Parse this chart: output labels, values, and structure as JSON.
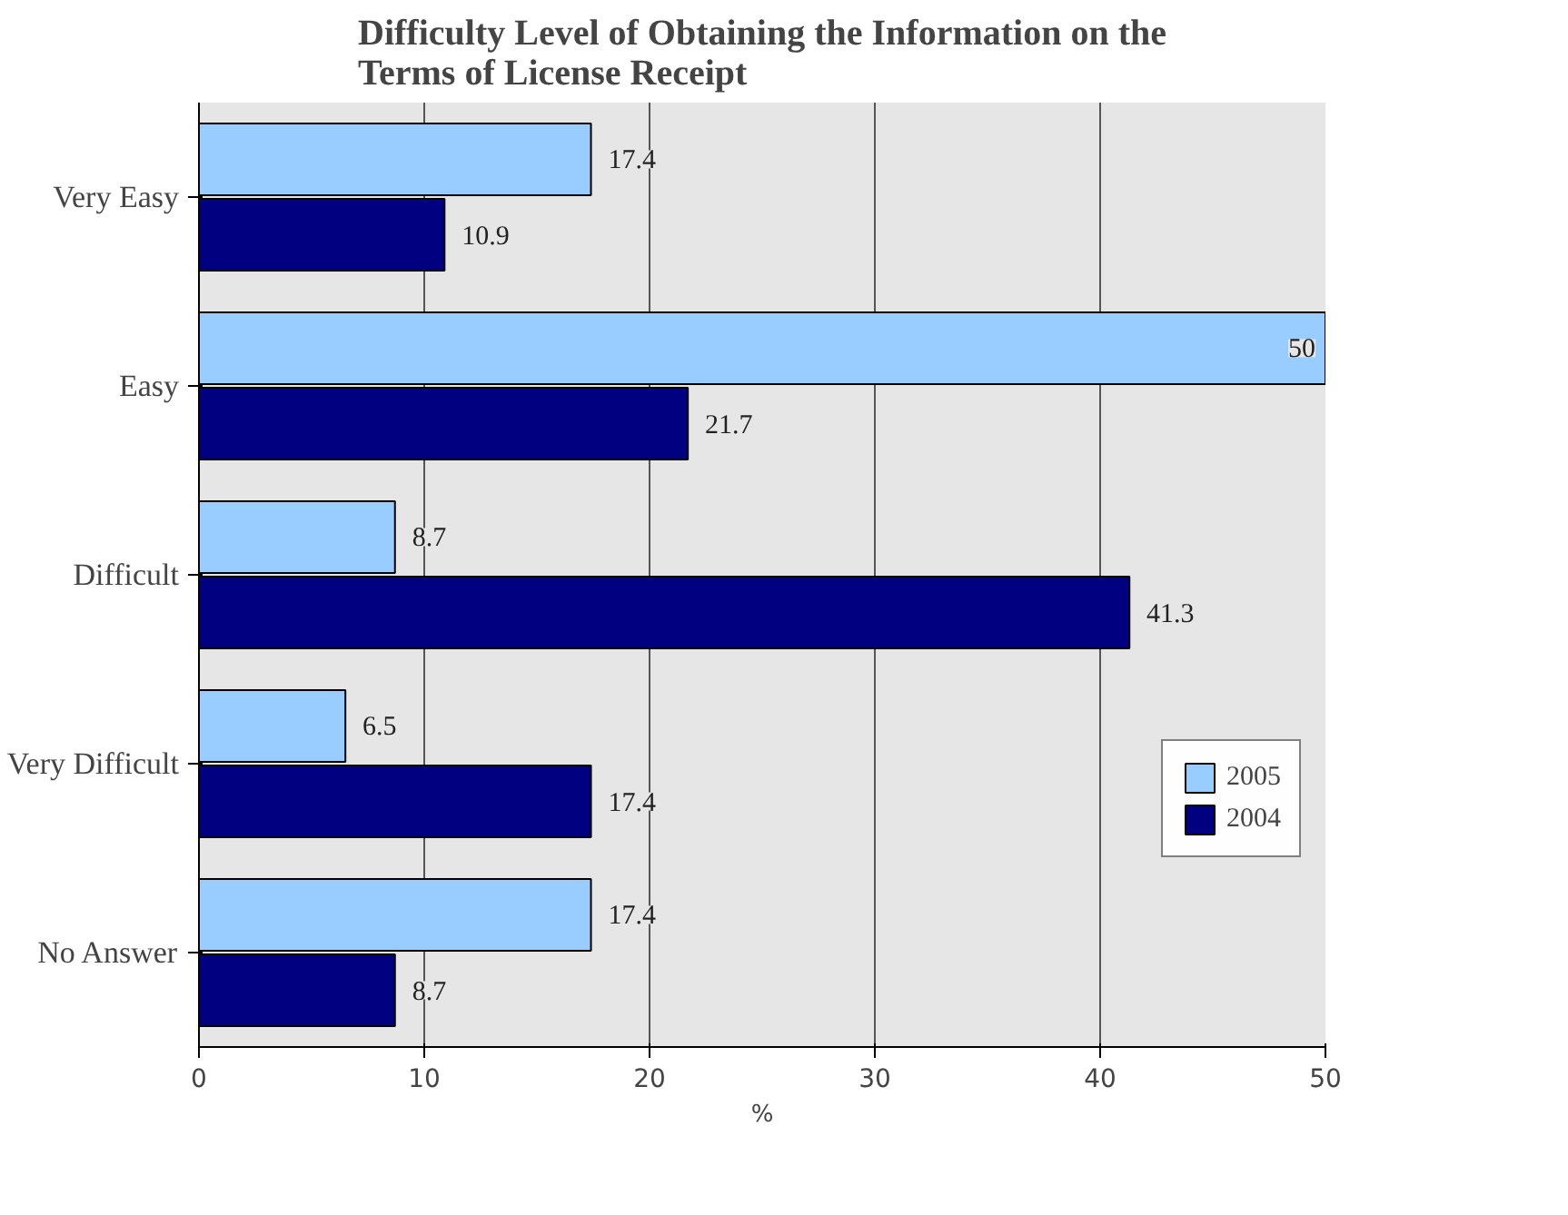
{
  "chart_data": {
    "type": "bar",
    "orientation": "horizontal",
    "title": "Difficulty Level of Obtaining the Information on the Terms of License Receipt",
    "xlabel": "%",
    "categories": [
      "Very Easy",
      "Easy",
      "Difficult",
      "Very Difficult",
      "No Answer"
    ],
    "series": [
      {
        "name": "2005",
        "color": "#99ccff",
        "values": [
          17.4,
          50,
          8.7,
          6.5,
          17.4
        ]
      },
      {
        "name": "2004",
        "color": "#000080",
        "values": [
          10.9,
          21.7,
          41.3,
          17.4,
          8.7
        ]
      }
    ],
    "data_labels": true,
    "xlim": [
      0,
      50
    ],
    "xticks": [
      0,
      10,
      20,
      30,
      40,
      50
    ],
    "grid": "x",
    "legend": "right"
  }
}
